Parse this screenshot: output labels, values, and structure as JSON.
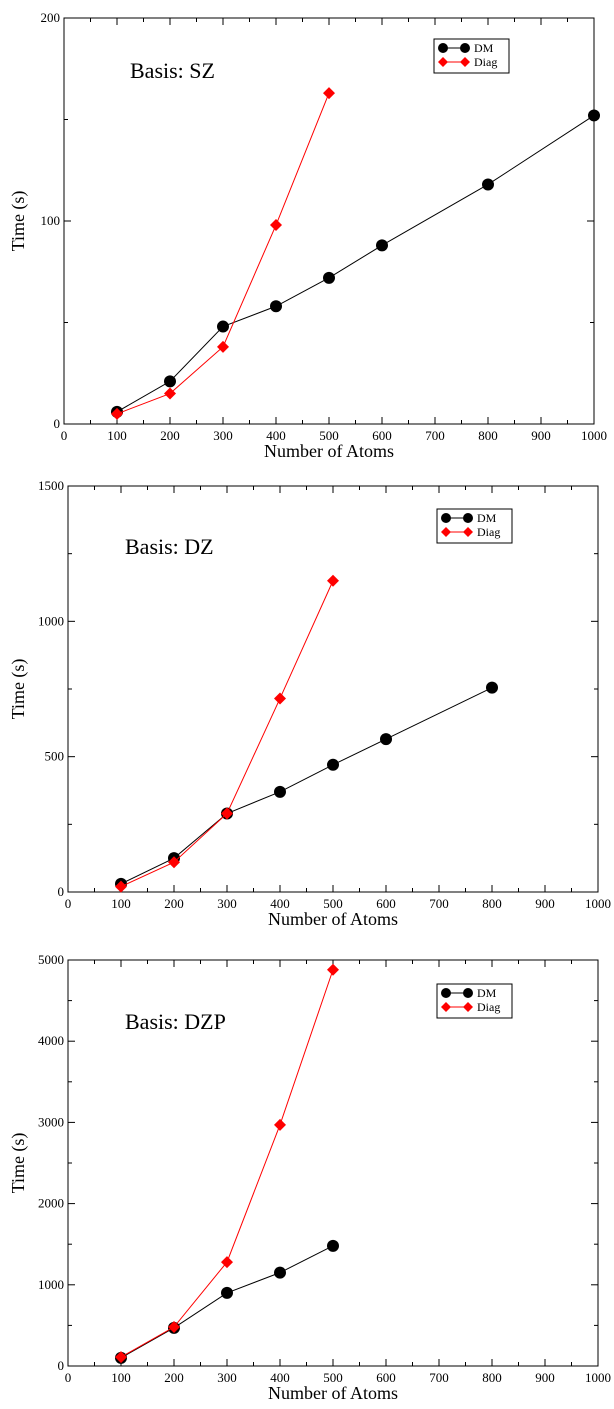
{
  "chart_data": [
    {
      "type": "line",
      "annotation": "Basis: SZ",
      "xlabel": "Number of Atoms",
      "ylabel": "Time (s)",
      "xlim": [
        0,
        1000
      ],
      "ylim": [
        0,
        200
      ],
      "xticks": [
        0,
        100,
        200,
        300,
        400,
        500,
        600,
        700,
        800,
        900,
        1000
      ],
      "yticks": [
        0,
        100,
        200
      ],
      "legend_position": "top-right",
      "grid": false,
      "series": [
        {
          "name": "DM",
          "color": "#000000",
          "marker": "circle",
          "x": [
            100,
            200,
            300,
            400,
            500,
            600,
            800,
            1000
          ],
          "y": [
            6,
            21,
            48,
            58,
            72,
            88,
            118,
            152
          ]
        },
        {
          "name": "Diag",
          "color": "#ff0000",
          "marker": "diamond",
          "x": [
            100,
            200,
            300,
            400,
            500
          ],
          "y": [
            5,
            15,
            38,
            98,
            163
          ]
        }
      ]
    },
    {
      "type": "line",
      "annotation": "Basis: DZ",
      "xlabel": "Number of Atoms",
      "ylabel": "Time (s)",
      "xlim": [
        0,
        1000
      ],
      "ylim": [
        0,
        1500
      ],
      "xticks": [
        0,
        100,
        200,
        300,
        400,
        500,
        600,
        700,
        800,
        900,
        1000
      ],
      "yticks": [
        0,
        500,
        1000,
        1500
      ],
      "legend_position": "top-right",
      "grid": false,
      "series": [
        {
          "name": "DM",
          "color": "#000000",
          "marker": "circle",
          "x": [
            100,
            200,
            300,
            400,
            500,
            600,
            800
          ],
          "y": [
            30,
            125,
            290,
            370,
            470,
            565,
            755
          ]
        },
        {
          "name": "Diag",
          "color": "#ff0000",
          "marker": "diamond",
          "x": [
            100,
            200,
            300,
            400,
            500
          ],
          "y": [
            20,
            110,
            290,
            715,
            1150
          ]
        }
      ]
    },
    {
      "type": "line",
      "annotation": "Basis: DZP",
      "xlabel": "Number of Atoms",
      "ylabel": "Time (s)",
      "xlim": [
        0,
        1000
      ],
      "ylim": [
        0,
        5000
      ],
      "xticks": [
        0,
        100,
        200,
        300,
        400,
        500,
        600,
        700,
        800,
        900,
        1000
      ],
      "yticks": [
        0,
        1000,
        2000,
        3000,
        4000,
        5000
      ],
      "legend_position": "top-right",
      "grid": false,
      "series": [
        {
          "name": "DM",
          "color": "#000000",
          "marker": "circle",
          "x": [
            100,
            200,
            300,
            400,
            500
          ],
          "y": [
            100,
            470,
            900,
            1150,
            1480
          ]
        },
        {
          "name": "Diag",
          "color": "#ff0000",
          "marker": "diamond",
          "x": [
            100,
            200,
            300,
            400,
            500
          ],
          "y": [
            110,
            480,
            1280,
            2970,
            4880
          ]
        }
      ]
    }
  ]
}
